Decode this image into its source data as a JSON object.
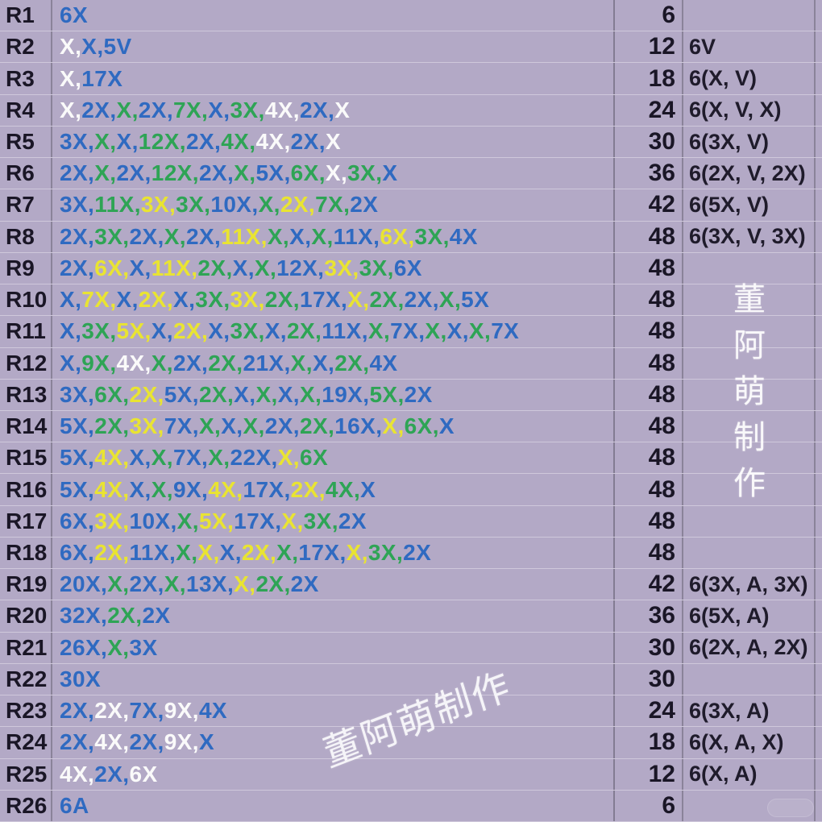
{
  "colors": {
    "blue": "#2f6ac1",
    "green": "#2ea455",
    "yellow": "#e9e432",
    "white": "#fafafa",
    "black": "#1a1626",
    "background": "#b3a9c6"
  },
  "watermarks": {
    "vertical_text": "董阿萌制作",
    "diagonal_text": "董阿萌制作"
  },
  "table": {
    "rows": [
      {
        "label": "R1",
        "count": "6",
        "note": "",
        "stitches": [
          {
            "t": "6X",
            "c": "blue"
          }
        ]
      },
      {
        "label": "R2",
        "count": "12",
        "note": "6V",
        "stitches": [
          {
            "t": "X",
            "c": "white"
          },
          {
            "t": "X",
            "c": "blue"
          },
          {
            "t": "5V",
            "c": "blue"
          }
        ]
      },
      {
        "label": "R3",
        "count": "18",
        "note": "6(X, V)",
        "stitches": [
          {
            "t": "X",
            "c": "white"
          },
          {
            "t": "17X",
            "c": "blue"
          }
        ]
      },
      {
        "label": "R4",
        "count": "24",
        "note": "6(X, V, X)",
        "stitches": [
          {
            "t": "X",
            "c": "white"
          },
          {
            "t": "2X",
            "c": "blue"
          },
          {
            "t": "X",
            "c": "green"
          },
          {
            "t": "2X",
            "c": "blue"
          },
          {
            "t": "7X",
            "c": "green"
          },
          {
            "t": "X",
            "c": "blue"
          },
          {
            "t": "3X",
            "c": "green"
          },
          {
            "t": "4X",
            "c": "white"
          },
          {
            "t": "2X",
            "c": "blue"
          },
          {
            "t": "X",
            "c": "white"
          }
        ]
      },
      {
        "label": "R5",
        "count": "30",
        "note": "6(3X, V)",
        "stitches": [
          {
            "t": "3X",
            "c": "blue"
          },
          {
            "t": "X",
            "c": "green"
          },
          {
            "t": "X",
            "c": "blue"
          },
          {
            "t": "12X",
            "c": "green"
          },
          {
            "t": "2X",
            "c": "blue"
          },
          {
            "t": "4X",
            "c": "green"
          },
          {
            "t": "4X",
            "c": "white"
          },
          {
            "t": "2X",
            "c": "blue"
          },
          {
            "t": "X",
            "c": "white"
          }
        ]
      },
      {
        "label": "R6",
        "count": "36",
        "note": "6(2X, V, 2X)",
        "stitches": [
          {
            "t": "2X",
            "c": "blue"
          },
          {
            "t": "X",
            "c": "green"
          },
          {
            "t": "2X",
            "c": "blue"
          },
          {
            "t": "12X",
            "c": "green"
          },
          {
            "t": "2X",
            "c": "blue"
          },
          {
            "t": "X",
            "c": "green"
          },
          {
            "t": "5X",
            "c": "blue"
          },
          {
            "t": "6X",
            "c": "green"
          },
          {
            "t": "X",
            "c": "white"
          },
          {
            "t": "3X",
            "c": "green"
          },
          {
            "t": "X",
            "c": "blue"
          }
        ]
      },
      {
        "label": "R7",
        "count": "42",
        "note": "6(5X, V)",
        "stitches": [
          {
            "t": "3X",
            "c": "blue"
          },
          {
            "t": "11X",
            "c": "green"
          },
          {
            "t": "3X",
            "c": "yellow"
          },
          {
            "t": "3X",
            "c": "green"
          },
          {
            "t": "10X",
            "c": "blue"
          },
          {
            "t": "X",
            "c": "green"
          },
          {
            "t": "2X",
            "c": "yellow"
          },
          {
            "t": "7X",
            "c": "green"
          },
          {
            "t": "2X",
            "c": "blue"
          }
        ]
      },
      {
        "label": "R8",
        "count": "48",
        "note": "6(3X, V, 3X)",
        "stitches": [
          {
            "t": "2X",
            "c": "blue"
          },
          {
            "t": "3X",
            "c": "green"
          },
          {
            "t": "2X",
            "c": "blue"
          },
          {
            "t": "X",
            "c": "green"
          },
          {
            "t": "2X",
            "c": "blue"
          },
          {
            "t": "11X",
            "c": "yellow"
          },
          {
            "t": "X",
            "c": "green"
          },
          {
            "t": "X",
            "c": "blue"
          },
          {
            "t": "X",
            "c": "green"
          },
          {
            "t": "11X",
            "c": "blue"
          },
          {
            "t": "6X",
            "c": "yellow"
          },
          {
            "t": "3X",
            "c": "green"
          },
          {
            "t": "4X",
            "c": "blue"
          }
        ]
      },
      {
        "label": "R9",
        "count": "48",
        "note": "",
        "stitches": [
          {
            "t": "2X",
            "c": "blue"
          },
          {
            "t": "6X",
            "c": "yellow"
          },
          {
            "t": "X",
            "c": "blue"
          },
          {
            "t": "11X",
            "c": "yellow"
          },
          {
            "t": "2X",
            "c": "green"
          },
          {
            "t": "X",
            "c": "blue"
          },
          {
            "t": "X",
            "c": "green"
          },
          {
            "t": "12X",
            "c": "blue"
          },
          {
            "t": "3X",
            "c": "yellow"
          },
          {
            "t": "3X",
            "c": "green"
          },
          {
            "t": "6X",
            "c": "blue"
          }
        ]
      },
      {
        "label": "R10",
        "count": "48",
        "note": "",
        "stitches": [
          {
            "t": "X",
            "c": "blue"
          },
          {
            "t": "7X",
            "c": "yellow"
          },
          {
            "t": "X",
            "c": "blue"
          },
          {
            "t": "2X",
            "c": "yellow"
          },
          {
            "t": "X",
            "c": "blue"
          },
          {
            "t": "3X",
            "c": "green"
          },
          {
            "t": "3X",
            "c": "yellow"
          },
          {
            "t": "2X",
            "c": "green"
          },
          {
            "t": "17X",
            "c": "blue"
          },
          {
            "t": "X",
            "c": "yellow"
          },
          {
            "t": "2X",
            "c": "green"
          },
          {
            "t": "2X",
            "c": "blue"
          },
          {
            "t": "X",
            "c": "green"
          },
          {
            "t": "5X",
            "c": "blue"
          }
        ]
      },
      {
        "label": "R11",
        "count": "48",
        "note": "",
        "stitches": [
          {
            "t": "X",
            "c": "blue"
          },
          {
            "t": "3X",
            "c": "green"
          },
          {
            "t": "5X",
            "c": "yellow"
          },
          {
            "t": "X",
            "c": "blue"
          },
          {
            "t": "2X",
            "c": "yellow"
          },
          {
            "t": "X",
            "c": "blue"
          },
          {
            "t": "3X",
            "c": "green"
          },
          {
            "t": "X",
            "c": "blue"
          },
          {
            "t": "2X",
            "c": "green"
          },
          {
            "t": "11X",
            "c": "blue"
          },
          {
            "t": "X",
            "c": "green"
          },
          {
            "t": "7X",
            "c": "blue"
          },
          {
            "t": "X",
            "c": "green"
          },
          {
            "t": "X",
            "c": "blue"
          },
          {
            "t": "X",
            "c": "green"
          },
          {
            "t": "7X",
            "c": "blue"
          }
        ]
      },
      {
        "label": "R12",
        "count": "48",
        "note": "",
        "stitches": [
          {
            "t": "X",
            "c": "blue"
          },
          {
            "t": "9X",
            "c": "green"
          },
          {
            "t": "4X",
            "c": "white"
          },
          {
            "t": "X",
            "c": "green"
          },
          {
            "t": "2X",
            "c": "blue"
          },
          {
            "t": "2X",
            "c": "green"
          },
          {
            "t": "21X",
            "c": "blue"
          },
          {
            "t": "X",
            "c": "green"
          },
          {
            "t": "X",
            "c": "blue"
          },
          {
            "t": "2X",
            "c": "green"
          },
          {
            "t": "4X",
            "c": "blue"
          }
        ]
      },
      {
        "label": "R13",
        "count": "48",
        "note": "",
        "stitches": [
          {
            "t": "3X",
            "c": "blue"
          },
          {
            "t": "6X",
            "c": "green"
          },
          {
            "t": "2X",
            "c": "yellow"
          },
          {
            "t": "5X",
            "c": "blue"
          },
          {
            "t": "2X",
            "c": "green"
          },
          {
            "t": "X",
            "c": "blue"
          },
          {
            "t": "X",
            "c": "green"
          },
          {
            "t": "X",
            "c": "blue"
          },
          {
            "t": "X",
            "c": "green"
          },
          {
            "t": "19X",
            "c": "blue"
          },
          {
            "t": "5X",
            "c": "green"
          },
          {
            "t": "2X",
            "c": "blue"
          }
        ]
      },
      {
        "label": "R14",
        "count": "48",
        "note": "",
        "stitches": [
          {
            "t": "5X",
            "c": "blue"
          },
          {
            "t": "2X",
            "c": "green"
          },
          {
            "t": "3X",
            "c": "yellow"
          },
          {
            "t": "7X",
            "c": "blue"
          },
          {
            "t": "X",
            "c": "green"
          },
          {
            "t": "X",
            "c": "blue"
          },
          {
            "t": "X",
            "c": "green"
          },
          {
            "t": "2X",
            "c": "blue"
          },
          {
            "t": "2X",
            "c": "green"
          },
          {
            "t": "16X",
            "c": "blue"
          },
          {
            "t": "X",
            "c": "yellow"
          },
          {
            "t": "6X",
            "c": "green"
          },
          {
            "t": "X",
            "c": "blue"
          }
        ]
      },
      {
        "label": "R15",
        "count": "48",
        "note": "",
        "stitches": [
          {
            "t": "5X",
            "c": "blue"
          },
          {
            "t": "4X",
            "c": "yellow"
          },
          {
            "t": "X",
            "c": "blue"
          },
          {
            "t": "X",
            "c": "green"
          },
          {
            "t": "7X",
            "c": "blue"
          },
          {
            "t": "X",
            "c": "green"
          },
          {
            "t": "22X",
            "c": "blue"
          },
          {
            "t": "X",
            "c": "yellow"
          },
          {
            "t": "6X",
            "c": "green"
          }
        ]
      },
      {
        "label": "R16",
        "count": "48",
        "note": "",
        "stitches": [
          {
            "t": "5X",
            "c": "blue"
          },
          {
            "t": "4X",
            "c": "yellow"
          },
          {
            "t": "X",
            "c": "blue"
          },
          {
            "t": "X",
            "c": "green"
          },
          {
            "t": "9X",
            "c": "blue"
          },
          {
            "t": "4X",
            "c": "yellow"
          },
          {
            "t": "17X",
            "c": "blue"
          },
          {
            "t": "2X",
            "c": "yellow"
          },
          {
            "t": "4X",
            "c": "green"
          },
          {
            "t": "X",
            "c": "blue"
          }
        ]
      },
      {
        "label": "R17",
        "count": "48",
        "note": "",
        "stitches": [
          {
            "t": "6X",
            "c": "blue"
          },
          {
            "t": "3X",
            "c": "yellow"
          },
          {
            "t": "10X",
            "c": "blue"
          },
          {
            "t": "X",
            "c": "green"
          },
          {
            "t": "5X",
            "c": "yellow"
          },
          {
            "t": "17X",
            "c": "blue"
          },
          {
            "t": "X",
            "c": "yellow"
          },
          {
            "t": "3X",
            "c": "green"
          },
          {
            "t": "2X",
            "c": "blue"
          }
        ]
      },
      {
        "label": "R18",
        "count": "48",
        "note": "",
        "stitches": [
          {
            "t": "6X",
            "c": "blue"
          },
          {
            "t": "2X",
            "c": "yellow"
          },
          {
            "t": "11X",
            "c": "blue"
          },
          {
            "t": "X",
            "c": "green"
          },
          {
            "t": "X",
            "c": "yellow"
          },
          {
            "t": "X",
            "c": "blue"
          },
          {
            "t": "2X",
            "c": "yellow"
          },
          {
            "t": "X",
            "c": "green"
          },
          {
            "t": "17X",
            "c": "blue"
          },
          {
            "t": "X",
            "c": "yellow"
          },
          {
            "t": "3X",
            "c": "green"
          },
          {
            "t": "2X",
            "c": "blue"
          }
        ]
      },
      {
        "label": "R19",
        "count": "42",
        "note": "6(3X, A, 3X)",
        "stitches": [
          {
            "t": "20X",
            "c": "blue"
          },
          {
            "t": "X",
            "c": "green"
          },
          {
            "t": "2X",
            "c": "blue"
          },
          {
            "t": "X",
            "c": "green"
          },
          {
            "t": "13X",
            "c": "blue"
          },
          {
            "t": "X",
            "c": "yellow"
          },
          {
            "t": "2X",
            "c": "green"
          },
          {
            "t": "2X",
            "c": "blue"
          }
        ]
      },
      {
        "label": "R20",
        "count": "36",
        "note": "6(5X, A)",
        "stitches": [
          {
            "t": "32X",
            "c": "blue"
          },
          {
            "t": "2X",
            "c": "green"
          },
          {
            "t": "2X",
            "c": "blue"
          }
        ]
      },
      {
        "label": "R21",
        "count": "30",
        "note": "6(2X, A, 2X)",
        "stitches": [
          {
            "t": "26X",
            "c": "blue"
          },
          {
            "t": "X",
            "c": "green"
          },
          {
            "t": "3X",
            "c": "blue"
          }
        ]
      },
      {
        "label": "R22",
        "count": "30",
        "note": "",
        "stitches": [
          {
            "t": "30X",
            "c": "blue"
          }
        ]
      },
      {
        "label": "R23",
        "count": "24",
        "note": "6(3X, A)",
        "stitches": [
          {
            "t": "2X",
            "c": "blue"
          },
          {
            "t": "2X",
            "c": "white"
          },
          {
            "t": "7X",
            "c": "blue"
          },
          {
            "t": "9X",
            "c": "white"
          },
          {
            "t": "4X",
            "c": "blue"
          }
        ]
      },
      {
        "label": "R24",
        "count": "18",
        "note": "6(X, A, X)",
        "stitches": [
          {
            "t": "2X",
            "c": "blue"
          },
          {
            "t": "4X",
            "c": "white"
          },
          {
            "t": "2X",
            "c": "blue"
          },
          {
            "t": "9X",
            "c": "white"
          },
          {
            "t": "X",
            "c": "blue"
          }
        ]
      },
      {
        "label": "R25",
        "count": "12",
        "note": "6(X, A)",
        "stitches": [
          {
            "t": "4X",
            "c": "white"
          },
          {
            "t": "2X",
            "c": "blue"
          },
          {
            "t": "6X",
            "c": "white"
          }
        ]
      },
      {
        "label": "R26",
        "count": "6",
        "note": "",
        "stitches": [
          {
            "t": "6A",
            "c": "blue"
          }
        ]
      }
    ]
  }
}
